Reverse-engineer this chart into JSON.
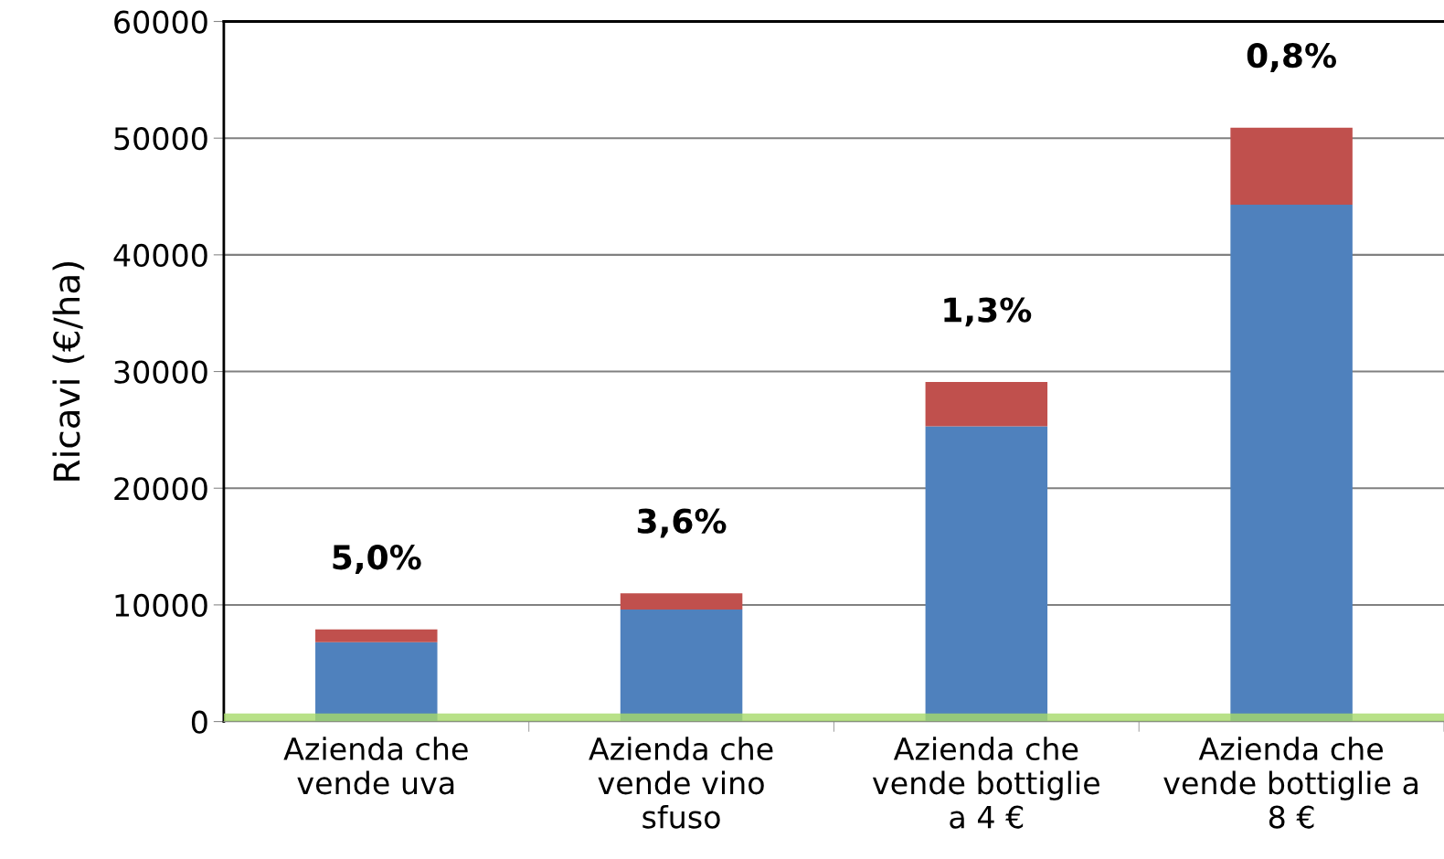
{
  "chart_data": {
    "type": "bar",
    "stacked": true,
    "ylabel": "Ricavi (€/ha)",
    "categories": [
      "Azienda che\nvende uva",
      "Azienda che\nvende vino\nsfuso",
      "Azienda che\nvende bottiglie\na 4 €",
      "Azienda che\nvende bottiglie a\n8 €"
    ],
    "series": [
      {
        "color": "#4f81bd",
        "values": [
          6800,
          9600,
          25300,
          44300
        ]
      },
      {
        "color": "#c0504d",
        "values": [
          1100,
          1400,
          3800,
          6600
        ]
      }
    ],
    "bands": [
      {
        "axis": "y",
        "from": 0,
        "to": 700,
        "color": "#a6d96a"
      }
    ],
    "annotations": [
      "5,0%",
      "3,6%",
      "1,3%",
      "0,8%"
    ],
    "ylim": [
      0,
      60000
    ],
    "yticks": [
      0,
      10000,
      20000,
      30000,
      40000,
      50000,
      60000
    ],
    "grid": "y",
    "legend": false
  }
}
